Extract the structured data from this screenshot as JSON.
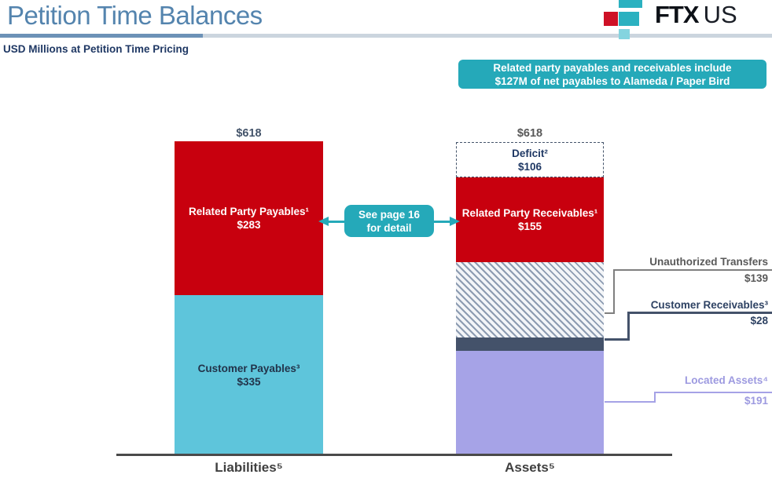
{
  "header": {
    "title": "Petition Time Balances",
    "subtitle": "USD Millions at Petition Time Pricing"
  },
  "logo": {
    "brand_bold": "FTX",
    "brand_light": "US"
  },
  "callout": {
    "line1": "Related party payables and receivables include",
    "line2": "$127M of net payables to Alameda / Paper Bird"
  },
  "annotation": {
    "line1": "See page 16",
    "line2": "for detail"
  },
  "colors": {
    "accent_teal": "#25A9B9",
    "bar_red": "#C8000E",
    "bar_cyan": "#5EC5DB",
    "bar_purple": "#A6A3E7",
    "bar_dark_slate": "#44526A",
    "hatch_stripe": "#8C9BB1",
    "navy_text": "#1F3864",
    "gray_label": "#595959",
    "purple_label": "#9D9AE0",
    "title_blue": "#5484AE",
    "logo_red": "#CE1126",
    "logo_teal": "#2BB1C0"
  },
  "chart_data": {
    "type": "bar",
    "subtype": "stacked",
    "title": "Petition Time Balances",
    "units_note": "USD Millions at Petition Time Pricing",
    "grid": false,
    "legend_position": "none",
    "ylim": [
      0,
      618
    ],
    "categories": [
      "Liabilities⁵",
      "Assets⁵"
    ],
    "bars": [
      {
        "category": "Liabilities⁵",
        "total": 618,
        "total_label": "$618",
        "segments": [
          {
            "label": "Related Party Payables¹",
            "value": 283,
            "value_label": "$283",
            "color": "#C8000E",
            "fill": "solid"
          },
          {
            "label": "Customer Payables³",
            "value": 335,
            "value_label": "$335",
            "color": "#5EC5DB",
            "fill": "solid"
          }
        ]
      },
      {
        "category": "Assets⁵",
        "total": 618,
        "total_label": "$618",
        "segments": [
          {
            "label": "Deficit²",
            "value": 106,
            "value_label": "$106",
            "color": "#FFFFFF",
            "fill": "dashed-outline"
          },
          {
            "label": "Related Party Receivables¹",
            "value": 155,
            "value_label": "$155",
            "color": "#C8000E",
            "fill": "solid"
          },
          {
            "label": "Unauthorized Transfers",
            "value": 139,
            "value_label": "$139",
            "color": "#8C9BB1",
            "fill": "diagonal-hatch"
          },
          {
            "label": "Customer Receivables³",
            "value": 28,
            "value_label": "$28",
            "color": "#44526A",
            "fill": "solid"
          },
          {
            "label": "Located Assets⁴",
            "value": 191,
            "value_label": "$191",
            "color": "#A6A3E7",
            "fill": "solid"
          }
        ]
      }
    ]
  }
}
